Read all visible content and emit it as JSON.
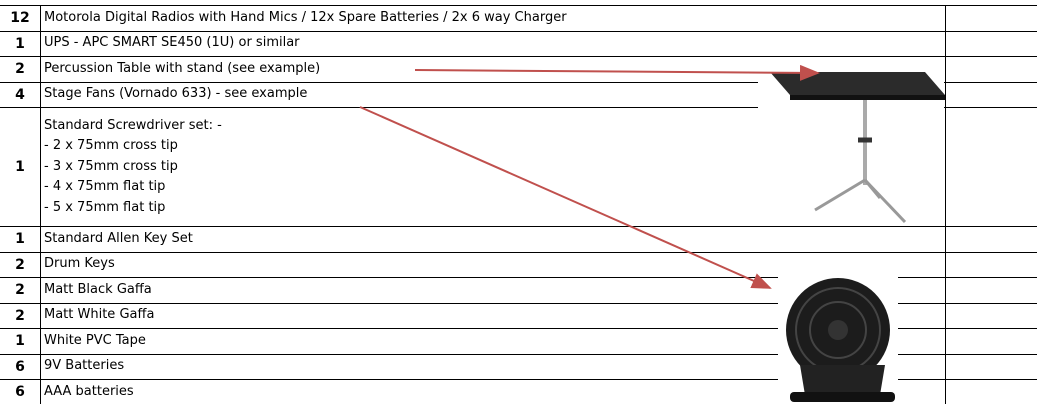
{
  "items": [
    {
      "qty": 12,
      "description": "Motorola Digital Radios with Hand Mics / 12x Spare Batteries / 2x 6 way Charger"
    },
    {
      "qty": 1,
      "description": "UPS - APC SMART SE450 (1U) or similar"
    },
    {
      "qty": 2,
      "description": "Percussion Table with stand (see example)"
    },
    {
      "qty": 4,
      "description": "Stage Fans (Vornado 633)  - see example"
    },
    {
      "qty": 1,
      "lines": [
        "Standard Screwdriver set: -",
        "- 2 x 75mm cross tip",
        "- 3 x 75mm cross tip",
        "- 4 x 75mm flat tip",
        "- 5 x 75mm flat tip"
      ]
    },
    {
      "qty": 1,
      "description": "Standard Allen Key Set"
    },
    {
      "qty": 2,
      "description": "Drum Keys"
    },
    {
      "qty": 2,
      "description": "Matt Black Gaffa"
    },
    {
      "qty": 2,
      "description": "Matt White Gaffa"
    },
    {
      "qty": 1,
      "description": "White PVC Tape"
    },
    {
      "qty": 6,
      "description": "9V Batteries"
    },
    {
      "qty": 6,
      "description": "AAA batteries"
    }
  ]
}
